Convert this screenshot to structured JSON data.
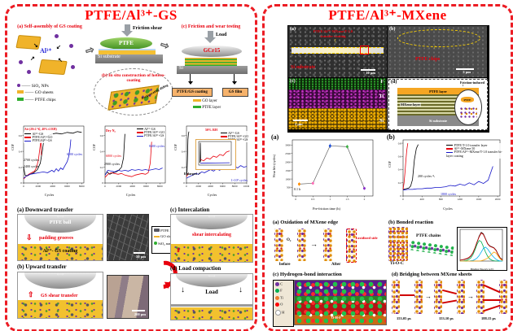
{
  "colors": {
    "accent_red": "#e8000d",
    "panel_border": "#ec1c24",
    "go_yellow": "#f0b32a",
    "ptfe_green": "#2fae2f",
    "sio2_purple": "#7030a0",
    "series_blue": "#1414c8"
  },
  "left_panel": {
    "title": "PTFE/Al³⁺-GS",
    "schematic": {
      "step_a_label": "(a) Self-assembly of GS coating",
      "al_ion": "Al³⁺",
      "legend": [
        {
          "label": "SiO₂ NPs"
        },
        {
          "label": "GO sheets"
        },
        {
          "label": "PTFE chips"
        }
      ],
      "friction_shear": "Friction shear",
      "ptfe": "PTFE",
      "si_substrate": "Si substrate",
      "step_b_label": "(b) In situ construction of hetero-coating",
      "recip": "Reciprocating sliding",
      "step_c_label": "(c) Friction and wear testing",
      "load": "Load",
      "gcr15": "GCr15",
      "si": "Si",
      "ptfe_gs_coating": "PTFE/GS coating",
      "gs_film": "GS film",
      "layer_legend": [
        {
          "label": "GO layer"
        },
        {
          "label": "PTFE layer"
        }
      ]
    },
    "mechanism": {
      "a_title": "(a) Downward transfer",
      "ptfe_ball": "PTFE ball",
      "padding_grooves": "padding grooves",
      "al_gs_coating": "Al³⁺- GS coating",
      "scale_50": "50 μm",
      "legend": [
        {
          "label": "PTFE chips"
        },
        {
          "label": "GO sheets"
        },
        {
          "label": "SiO₂ nanoparticles"
        }
      ],
      "b_title": "(b) Upward transfer",
      "gs_shear_transfer": "GS shear transfer",
      "scale_200": "200 μm",
      "c_title": "(c) Intercalation",
      "shear_intercalating": "shear intercalating",
      "d_title": "(d) Load compaction",
      "load": "Load"
    }
  },
  "right_panel": {
    "title": "PTFE/Al³⁺-MXene",
    "sem": {
      "a_label": "(a)",
      "a_text1": "PTFE/Al³⁺-MXene/T-1.0",
      "a_text2": "transfer coating",
      "a_text3": "Si substrate",
      "a_scale": "10 μm",
      "b_label": "(b)",
      "b_text": "PTFE chips",
      "b_scale": "3 μm",
      "c_label": "(c)",
      "c_f": "F",
      "c_ti": "Ti",
      "c_si": "Si",
      "c_scale": "2 μm",
      "d_label": "(d)",
      "d_friction": "Friction-induced",
      "d_ptfe_layer": "PTFE layer",
      "d_mxene_layer": "MXene layer",
      "d_si_substrate": "Si substrate",
      "d_ptfe": "PTFE"
    },
    "mech": {
      "a_title": "(a) Oxidation of MXene edge",
      "o2": "O₂",
      "before": "before",
      "after": "After",
      "oxidized": "oxidized side",
      "b_title": "(b) Bonded reaction",
      "ptfe_chains": "PTFE chains",
      "ti_o_c": "Ti-O-C",
      "c_title": "(c) Hydrogen-bond interaction",
      "atom_legend": [
        {
          "label": "C",
          "color": "#7030a0"
        },
        {
          "label": "F",
          "color": "#00b050"
        },
        {
          "label": "Ti",
          "color": "#ed7d31"
        },
        {
          "label": "O",
          "color": "#ff0000"
        },
        {
          "label": "H",
          "color": "#ffffff"
        }
      ],
      "ohf": "O-H-F",
      "d_title": "(d) Bridging between MXene sheets",
      "times": [
        "153.05 ps",
        "153.10 ps",
        "188.15 ps"
      ]
    }
  },
  "chart_data": [
    {
      "id": "cof_air",
      "type": "line",
      "title": "Air (20±2 ℃, 40%±2 RH)",
      "xlabel": "Cycles",
      "ylabel": "COF",
      "xlim": [
        0,
        8300
      ],
      "ylim": [
        0,
        0.72
      ],
      "xticks": [
        0,
        2000,
        4000,
        6000,
        8000
      ],
      "yticks": [
        0.0,
        0.2,
        0.4,
        0.6
      ],
      "annotations": [
        "2700 cycles",
        "2400 cycles",
        "6500 cycles"
      ],
      "series": [
        {
          "name": "Al³⁺-GS",
          "color": "#000000",
          "x": [
            0,
            200,
            500,
            900,
            1400,
            1900,
            2300,
            2600,
            2750,
            3000,
            3400,
            3900,
            4500,
            5200,
            6000,
            6800,
            7400,
            8000
          ],
          "y": [
            0.2,
            0.1,
            0.09,
            0.11,
            0.13,
            0.17,
            0.25,
            0.42,
            0.52,
            0.57,
            0.6,
            0.62,
            0.63,
            0.62,
            0.64,
            0.63,
            0.65,
            0.64
          ]
        },
        {
          "name": "PTFE/Al³⁺-GO",
          "color": "#e8000d",
          "x": [
            0,
            300,
            700,
            1100,
            1500,
            1800,
            2050,
            2250,
            2400,
            2450
          ],
          "y": [
            0.05,
            0.08,
            0.11,
            0.13,
            0.15,
            0.2,
            0.3,
            0.45,
            0.55,
            0.35
          ]
        },
        {
          "name": "PTFE/Al³⁺-GS",
          "color": "#1414c8",
          "x": [
            0,
            400,
            900,
            1500,
            2100,
            2700,
            3300,
            3900,
            4200,
            4500,
            4800,
            5100,
            5400,
            5700,
            6000,
            6200,
            6400,
            6500
          ],
          "y": [
            0.06,
            0.09,
            0.11,
            0.12,
            0.13,
            0.14,
            0.13,
            0.16,
            0.14,
            0.18,
            0.15,
            0.19,
            0.17,
            0.22,
            0.27,
            0.33,
            0.45,
            0.55
          ]
        }
      ]
    },
    {
      "id": "cof_dry_n2",
      "type": "line",
      "title": "Dry N₂",
      "xlabel": "Cycles",
      "ylabel": "COF",
      "xlim": [
        0,
        8800
      ],
      "ylim": [
        0,
        0.72
      ],
      "xticks": [
        0,
        2000,
        4000,
        6000,
        8000
      ],
      "yticks": [
        0.0,
        0.2,
        0.4,
        0.6
      ],
      "annotations": [
        "8400 cycles",
        "6800 cycles",
        "2900 cycles"
      ],
      "series": [
        {
          "name": "Al³⁺-GS",
          "color": "#000000",
          "x": [
            0,
            300,
            700,
            1100,
            1600,
            2000,
            2400,
            2700,
            2900
          ],
          "y": [
            0.1,
            0.14,
            0.11,
            0.13,
            0.14,
            0.16,
            0.2,
            0.32,
            0.62
          ]
        },
        {
          "name": "PTFE/Al³⁺-GO",
          "color": "#e8000d",
          "x": [
            0,
            400,
            900,
            1400,
            1900,
            2400,
            2900,
            3400,
            3900,
            4400,
            4900,
            5400,
            5900,
            6300,
            6600,
            6800
          ],
          "y": [
            0.07,
            0.11,
            0.13,
            0.12,
            0.11,
            0.12,
            0.1,
            0.09,
            0.08,
            0.1,
            0.11,
            0.12,
            0.11,
            0.13,
            0.25,
            0.52
          ]
        },
        {
          "name": "PTFE/Al³⁺-GS",
          "color": "#1414c8",
          "x": [
            0,
            400,
            900,
            1400,
            1900,
            2400,
            2900,
            3400,
            3900,
            4400,
            4900,
            5400,
            5900,
            6400,
            6900,
            7400,
            7900,
            8400
          ],
          "y": [
            0.1,
            0.16,
            0.15,
            0.14,
            0.16,
            0.15,
            0.16,
            0.15,
            0.17,
            0.16,
            0.17,
            0.16,
            0.17,
            0.16,
            0.17,
            0.18,
            0.17,
            0.19
          ]
        }
      ]
    },
    {
      "id": "cof_50rh",
      "type": "line",
      "title": "50% RH",
      "xlabel": "Cycles",
      "ylabel": "COF",
      "xlim": [
        0,
        10000
      ],
      "ylim": [
        0,
        0.72
      ],
      "xticks": [
        0,
        2000,
        4000,
        6000,
        8000,
        10000
      ],
      "yticks": [
        0.0,
        0.2,
        0.4,
        0.6
      ],
      "annotations": [
        "Enlarged",
        "1×10⁵ cycles"
      ],
      "series": [
        {
          "name": "Al³⁺-GS",
          "color": "#000000",
          "x": [
            0,
            80,
            160,
            240,
            320,
            400
          ],
          "y": [
            0.1,
            0.12,
            0.3,
            0.55,
            0.62,
            0.65
          ]
        },
        {
          "name": "PTFE/Al³⁺-GO",
          "color": "#e8000d",
          "x": [
            0,
            150,
            300
          ],
          "y": [
            0.08,
            0.1,
            0.12
          ]
        },
        {
          "name": "PTFE/Al³⁺-GS",
          "color": "#1414c8",
          "x": [
            0,
            500,
            1000,
            1500,
            2000,
            2500,
            3000,
            3500,
            4000,
            4500,
            5000,
            5500,
            6000,
            6500,
            7000,
            7500,
            8000,
            8500,
            9000,
            9500,
            10000
          ],
          "y": [
            0.06,
            0.08,
            0.1,
            0.12,
            0.11,
            0.14,
            0.13,
            0.15,
            0.17,
            0.15,
            0.18,
            0.16,
            0.19,
            0.17,
            0.2,
            0.18,
            0.21,
            0.19,
            0.22,
            0.2,
            0.21
          ]
        }
      ]
    },
    {
      "id": "cof_50rh_inset",
      "type": "line",
      "xlim": [
        0,
        1
      ],
      "ylim": [
        0,
        1
      ],
      "pl": 3,
      "pb": 3,
      "series": [
        {
          "name": "Al³⁺-GS",
          "color": "#000000",
          "x": [
            0.04,
            0.05,
            0.06
          ],
          "y": [
            0.1,
            0.95,
            0.15
          ]
        },
        {
          "name": "PTFE/Al³⁺-GO",
          "color": "#e8000d",
          "x": [
            0.05,
            0.15,
            0.25,
            0.35,
            0.45,
            0.55,
            0.65,
            0.75,
            0.85,
            0.95
          ],
          "y": [
            0.25,
            0.18,
            0.3,
            0.26,
            0.38,
            0.33,
            0.45,
            0.4,
            0.55,
            0.6
          ]
        },
        {
          "name": "PTFE/Al³⁺-GS",
          "color": "#1414c8",
          "x": [
            0.05,
            0.5,
            0.95
          ],
          "y": [
            0.08,
            0.09,
            0.1
          ]
        }
      ]
    },
    {
      "id": "wear_life",
      "type": "scatter",
      "xlabel": "Pre-friction time (h)",
      "ylabel": "Wear life (cycles)",
      "xlim": [
        -0.1,
        2.25
      ],
      "ylim": [
        0,
        3300
      ],
      "xticks": [
        0.0,
        0.5,
        1.0,
        1.5,
        2.0
      ],
      "yticks": [
        500,
        1000,
        1500,
        2000,
        2500,
        3000
      ],
      "annotations": [
        "0.1 h"
      ],
      "pl": 16,
      "pb": 11,
      "point_colors": [
        "#ff8c00",
        "#ff69b4",
        "#1e4fd8",
        "#3cb043",
        "#8b2fc9"
      ],
      "yerr": [
        110,
        90,
        130,
        110,
        90
      ],
      "series": [
        {
          "name": "Wear life",
          "color": "#666666",
          "x": [
            0.1,
            0.5,
            1.0,
            1.5,
            2.0
          ],
          "y": [
            700,
            750,
            2950,
            2900,
            450
          ]
        }
      ]
    },
    {
      "id": "cof_mxene",
      "type": "line",
      "xlabel": "Cycles",
      "ylabel": "COF",
      "xlim": [
        0,
        2050
      ],
      "ylim": [
        0,
        0.85
      ],
      "xticks": [
        0,
        400,
        800,
        1200,
        1600,
        2000
      ],
      "yticks": [
        0.0,
        0.2,
        0.4,
        0.6,
        0.8
      ],
      "annotations": [
        "200 cycles",
        "1800 cycles"
      ],
      "pl": 12,
      "pb": 11,
      "series": [
        {
          "name": "PTFE/T-1.0 transfer layer",
          "color": "#000000",
          "x": [
            0,
            60,
            120,
            160,
            200,
            240,
            280,
            320
          ],
          "y": [
            0.1,
            0.11,
            0.12,
            0.15,
            0.25,
            0.55,
            0.72,
            0.78
          ]
        },
        {
          "name": "Al³⁺-MXene/10",
          "color": "#e8000d",
          "x": [
            0,
            20,
            40,
            60,
            80,
            100
          ],
          "y": [
            0.1,
            0.2,
            0.35,
            0.55,
            0.7,
            0.8
          ]
        },
        {
          "name": "PTFE/Al³⁺-MXene/T-1.0 transfer bi-layer coating",
          "color": "#1414c8",
          "x": [
            0,
            100,
            200,
            300,
            400,
            500,
            600,
            700,
            800,
            900,
            1000,
            1100,
            1200,
            1300,
            1400,
            1500,
            1600,
            1700,
            1800,
            1900
          ],
          "y": [
            0.09,
            0.1,
            0.1,
            0.11,
            0.11,
            0.12,
            0.12,
            0.13,
            0.13,
            0.14,
            0.16,
            0.15,
            0.18,
            0.16,
            0.2,
            0.17,
            0.22,
            0.19,
            0.24,
            0.45
          ]
        }
      ]
    },
    {
      "id": "xps_c1s",
      "type": "line",
      "xlabel": "Binding Energy (eV)",
      "xlim": [
        0,
        100
      ],
      "ylim": [
        0,
        1.05
      ],
      "pl": 3,
      "pb": 3,
      "series": [
        {
          "name": "Raw data",
          "color": "#000000",
          "x": [
            0,
            5,
            10,
            15,
            20,
            25,
            30,
            35,
            40,
            45,
            50,
            55,
            60,
            65,
            70,
            75,
            80,
            85,
            90,
            95,
            100
          ],
          "y": [
            0.03,
            0.04,
            0.05,
            0.07,
            0.1,
            0.16,
            0.26,
            0.42,
            0.62,
            0.82,
            0.95,
            0.9,
            0.74,
            0.58,
            0.5,
            0.47,
            0.44,
            0.36,
            0.22,
            0.1,
            0.05
          ]
        },
        {
          "name": "Fitting",
          "color": "#c00000",
          "x": [
            0,
            5,
            10,
            15,
            20,
            25,
            30,
            35,
            40,
            45,
            50,
            55,
            60,
            65,
            70,
            75,
            80,
            85,
            90,
            95,
            100
          ],
          "y": [
            0.03,
            0.04,
            0.06,
            0.08,
            0.11,
            0.17,
            0.27,
            0.43,
            0.63,
            0.8,
            0.93,
            0.88,
            0.73,
            0.57,
            0.49,
            0.46,
            0.43,
            0.35,
            0.21,
            0.09,
            0.04
          ]
        },
        {
          "name": "C-C",
          "color": "#00b050",
          "x": [
            0,
            5,
            10,
            15,
            20,
            25,
            30,
            35,
            40,
            45,
            50,
            55,
            60,
            65,
            70,
            75,
            80,
            85,
            90,
            95,
            100
          ],
          "y": [
            0,
            0,
            0.01,
            0.02,
            0.05,
            0.1,
            0.2,
            0.36,
            0.55,
            0.68,
            0.64,
            0.48,
            0.3,
            0.16,
            0.07,
            0.03,
            0.01,
            0,
            0,
            0,
            0
          ]
        },
        {
          "name": "C-F",
          "color": "#00b0f0",
          "x": [
            0,
            5,
            10,
            15,
            20,
            25,
            30,
            35,
            40,
            45,
            50,
            55,
            60,
            65,
            70,
            75,
            80,
            85,
            90,
            95,
            100
          ],
          "y": [
            0,
            0,
            0,
            0,
            0,
            0.01,
            0.02,
            0.05,
            0.1,
            0.18,
            0.3,
            0.42,
            0.46,
            0.4,
            0.3,
            0.2,
            0.12,
            0.06,
            0.02,
            0,
            0
          ]
        },
        {
          "name": "Ti-O-C",
          "color": "#ffa500",
          "x": [
            0,
            5,
            10,
            15,
            20,
            25,
            30,
            35,
            40,
            45,
            50,
            55,
            60,
            65,
            70,
            75,
            80,
            85,
            90,
            95,
            100
          ],
          "y": [
            0,
            0,
            0,
            0,
            0,
            0,
            0,
            0,
            0,
            0,
            0.01,
            0.03,
            0.06,
            0.1,
            0.16,
            0.24,
            0.3,
            0.26,
            0.16,
            0.07,
            0.02
          ]
        }
      ]
    }
  ]
}
